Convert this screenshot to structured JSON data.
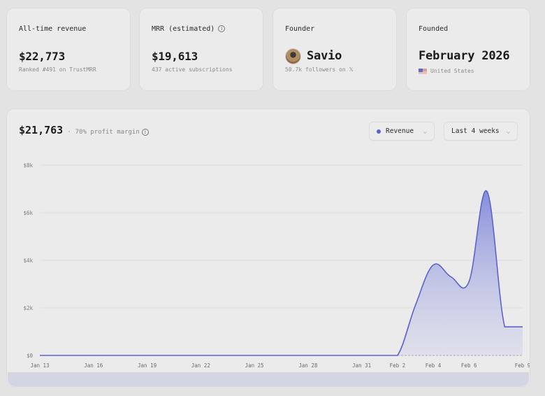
{
  "stats": [
    {
      "label": "All-time revenue",
      "value": "$22,773",
      "sub": "Ranked #491 on TrustMRR",
      "info": false
    },
    {
      "label": "MRR (estimated)",
      "value": "$19,613",
      "sub": "437 active subscriptions",
      "info": true
    },
    {
      "label": "Founder",
      "value": "Savio",
      "sub": "50.7k followers on 𝕏",
      "avatar": "founder-avatar"
    },
    {
      "label": "Founded",
      "value": "February 2026",
      "sub": "United States",
      "flag": "us-flag-icon"
    }
  ],
  "chart_header": {
    "total": "$21,763",
    "separator": "·",
    "margin": "70% profit margin",
    "metric_dropdown": "Revenue",
    "range_dropdown": "Last 4 weeks"
  },
  "colors": {
    "accent": "#5b63c9",
    "fill_top": "#8c93de",
    "background": "#e3e3e3",
    "card": "#ebebeb"
  },
  "chart_data": {
    "type": "area",
    "title": "",
    "xlabel": "",
    "ylabel": "Revenue",
    "ylim": [
      0,
      8000
    ],
    "y_ticks": [
      "$0",
      "$2k",
      "$4k",
      "$6k",
      "$8k"
    ],
    "x_ticks": [
      "Jan 13",
      "Jan 16",
      "Jan 19",
      "Jan 22",
      "Jan 25",
      "Jan 28",
      "Jan 31",
      "Feb 2",
      "Feb 4",
      "Feb 6",
      "Feb 9"
    ],
    "grid": true,
    "legend": "none",
    "series": [
      {
        "name": "Revenue",
        "x": [
          "Jan 13",
          "Jan 14",
          "Jan 15",
          "Jan 16",
          "Jan 17",
          "Jan 18",
          "Jan 19",
          "Jan 20",
          "Jan 21",
          "Jan 22",
          "Jan 23",
          "Jan 24",
          "Jan 25",
          "Jan 26",
          "Jan 27",
          "Jan 28",
          "Jan 29",
          "Jan 30",
          "Jan 31",
          "Feb 1",
          "Feb 2",
          "Feb 3",
          "Feb 4",
          "Feb 5",
          "Feb 6",
          "Feb 7",
          "Feb 8",
          "Feb 9"
        ],
        "values": [
          0,
          0,
          0,
          0,
          0,
          0,
          0,
          0,
          0,
          0,
          0,
          0,
          0,
          0,
          0,
          0,
          0,
          0,
          0,
          0,
          0,
          2100,
          3800,
          3300,
          3100,
          6900,
          1200,
          1200
        ]
      }
    ]
  }
}
